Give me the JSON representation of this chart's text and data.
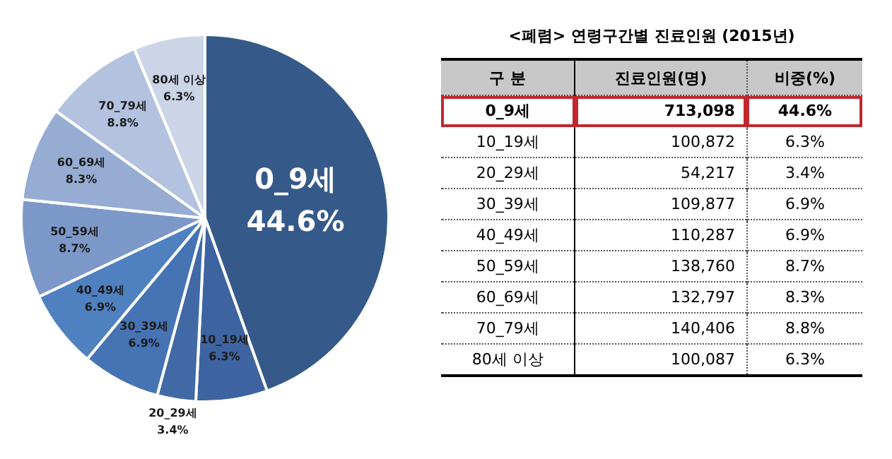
{
  "chart_data": [
    {
      "type": "pie",
      "categories": [
        "0_9세",
        "10_19세",
        "20_29세",
        "30_39세",
        "40_49세",
        "50_59세",
        "60_69세",
        "70_79세",
        "80세 이상"
      ],
      "values": [
        44.6,
        6.3,
        3.4,
        6.9,
        6.9,
        8.7,
        8.3,
        8.8,
        6.3
      ],
      "value_labels": [
        "44.6%",
        "6.3%",
        "3.4%",
        "6.9%",
        "6.9%",
        "8.7%",
        "8.3%",
        "8.8%",
        "6.3%"
      ],
      "colors": [
        "#355a8a",
        "#3d64a0",
        "#4169a6",
        "#4673b4",
        "#4f80c0",
        "#7b98c8",
        "#96acd2",
        "#b3c2df",
        "#ccd5e7"
      ]
    },
    {
      "type": "other",
      "title": "<폐렴> 연령구간별 진료인원 (2015년)",
      "xlabel": "구 분",
      "categories": [
        "0_9세",
        "10_19세",
        "20_29세",
        "30_39세",
        "40_49세",
        "50_59세",
        "60_69세",
        "70_79세",
        "80세 이상"
      ],
      "series": [
        {
          "name": "진료인원(명)",
          "values": [
            713098,
            100872,
            54217,
            109877,
            110287,
            138760,
            132797,
            140406,
            100087
          ],
          "value_labels": [
            "713,098",
            "100,872",
            "54,217",
            "109,877",
            "110,287",
            "138,760",
            "132,797",
            "140,406",
            "100,087"
          ]
        },
        {
          "name": "비중(%)",
          "values": [
            44.6,
            6.3,
            3.4,
            6.9,
            6.9,
            8.7,
            8.3,
            8.8,
            6.3
          ],
          "value_labels": [
            "44.6%",
            "6.3%",
            "3.4%",
            "6.9%",
            "6.9%",
            "8.7%",
            "8.3%",
            "8.8%",
            "6.3%"
          ]
        }
      ]
    }
  ]
}
